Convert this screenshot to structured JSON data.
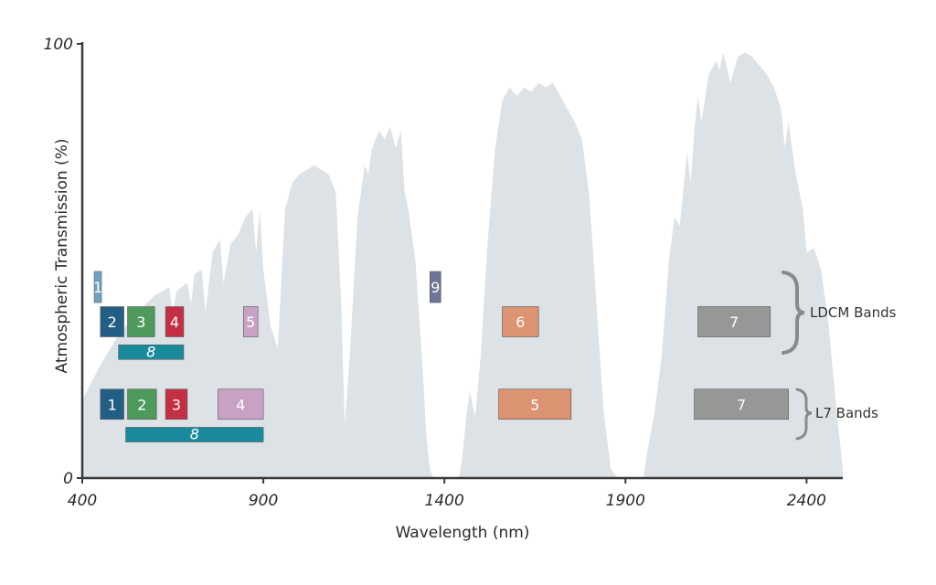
{
  "chart_data": {
    "type": "area",
    "title": "",
    "xlabel": "Wavelength (nm)",
    "ylabel": "Atmospheric Transmission (%)",
    "xlim": [
      400,
      2500
    ],
    "ylim": [
      0,
      100
    ],
    "x_ticks": [
      400,
      900,
      1400,
      1900,
      2400
    ],
    "y_ticks": [
      0,
      100
    ],
    "grid": false,
    "area_color": "#dde2e6",
    "series": [
      {
        "values": [
          [
            400,
            18
          ],
          [
            450,
            26
          ],
          [
            500,
            33
          ],
          [
            550,
            38
          ],
          [
            600,
            42
          ],
          [
            640,
            44
          ],
          [
            650,
            38
          ],
          [
            660,
            43
          ],
          [
            690,
            45
          ],
          [
            700,
            40
          ],
          [
            710,
            47
          ],
          [
            730,
            48
          ],
          [
            740,
            38
          ],
          [
            760,
            52
          ],
          [
            780,
            55
          ],
          [
            790,
            45
          ],
          [
            810,
            54
          ],
          [
            830,
            56
          ],
          [
            850,
            60
          ],
          [
            870,
            62
          ],
          [
            880,
            52
          ],
          [
            890,
            62
          ],
          [
            900,
            48
          ],
          [
            920,
            35
          ],
          [
            940,
            30
          ],
          [
            960,
            62
          ],
          [
            980,
            68
          ],
          [
            1000,
            70
          ],
          [
            1020,
            71
          ],
          [
            1040,
            72
          ],
          [
            1060,
            71
          ],
          [
            1080,
            70
          ],
          [
            1100,
            66
          ],
          [
            1115,
            40
          ],
          [
            1125,
            12
          ],
          [
            1140,
            30
          ],
          [
            1160,
            60
          ],
          [
            1180,
            72
          ],
          [
            1190,
            70
          ],
          [
            1200,
            76
          ],
          [
            1220,
            80
          ],
          [
            1235,
            78
          ],
          [
            1250,
            81
          ],
          [
            1265,
            76
          ],
          [
            1280,
            80
          ],
          [
            1290,
            66
          ],
          [
            1300,
            62
          ],
          [
            1320,
            50
          ],
          [
            1340,
            25
          ],
          [
            1350,
            10
          ],
          [
            1360,
            2
          ],
          [
            1370,
            0
          ],
          [
            1440,
            0
          ],
          [
            1450,
            5
          ],
          [
            1460,
            14
          ],
          [
            1470,
            20
          ],
          [
            1485,
            14
          ],
          [
            1500,
            28
          ],
          [
            1520,
            55
          ],
          [
            1540,
            76
          ],
          [
            1560,
            87
          ],
          [
            1580,
            90
          ],
          [
            1600,
            88
          ],
          [
            1620,
            90
          ],
          [
            1640,
            89
          ],
          [
            1660,
            91
          ],
          [
            1680,
            90
          ],
          [
            1700,
            91
          ],
          [
            1720,
            88
          ],
          [
            1740,
            85
          ],
          [
            1760,
            82
          ],
          [
            1780,
            78
          ],
          [
            1800,
            65
          ],
          [
            1820,
            40
          ],
          [
            1840,
            15
          ],
          [
            1860,
            2
          ],
          [
            1880,
            0
          ],
          [
            1950,
            0
          ],
          [
            1960,
            6
          ],
          [
            1980,
            15
          ],
          [
            2000,
            28
          ],
          [
            2020,
            50
          ],
          [
            2035,
            60
          ],
          [
            2050,
            58
          ],
          [
            2070,
            75
          ],
          [
            2080,
            68
          ],
          [
            2090,
            80
          ],
          [
            2100,
            88
          ],
          [
            2110,
            82
          ],
          [
            2130,
            93
          ],
          [
            2150,
            96
          ],
          [
            2160,
            94
          ],
          [
            2170,
            98
          ],
          [
            2190,
            91
          ],
          [
            2210,
            97
          ],
          [
            2230,
            98
          ],
          [
            2250,
            97
          ],
          [
            2270,
            95
          ],
          [
            2290,
            93
          ],
          [
            2310,
            90
          ],
          [
            2330,
            85
          ],
          [
            2340,
            76
          ],
          [
            2350,
            82
          ],
          [
            2370,
            70
          ],
          [
            2390,
            62
          ],
          [
            2400,
            52
          ],
          [
            2420,
            53
          ],
          [
            2440,
            48
          ],
          [
            2460,
            36
          ],
          [
            2480,
            18
          ],
          [
            2500,
            2
          ]
        ]
      }
    ],
    "ldcm_group_label": "LDCM Bands",
    "ldcm_bands": [
      {
        "label": "1",
        "start": 433,
        "end": 453,
        "level": 44,
        "color": "#6fa3c6"
      },
      {
        "label": "2",
        "start": 450,
        "end": 515,
        "level": 36,
        "color": "#235f84"
      },
      {
        "label": "3",
        "start": 525,
        "end": 600,
        "level": 36,
        "color": "#4d9a5c"
      },
      {
        "label": "4",
        "start": 630,
        "end": 680,
        "level": 36,
        "color": "#c33043"
      },
      {
        "label": "5",
        "start": 845,
        "end": 885,
        "level": 36,
        "color": "#c9a1c4"
      },
      {
        "label": "6",
        "start": 1560,
        "end": 1660,
        "level": 36,
        "color": "#dc9372"
      },
      {
        "label": "7",
        "start": 2100,
        "end": 2300,
        "level": 36,
        "color": "#959895"
      },
      {
        "label": "8",
        "start": 500,
        "end": 680,
        "level": 29,
        "color": "#198a9c"
      },
      {
        "label": "9",
        "start": 1360,
        "end": 1390,
        "level": 44,
        "color": "#6d7599"
      }
    ],
    "l7_group_label": "L7 Bands",
    "l7_bands": [
      {
        "label": "1",
        "start": 450,
        "end": 515,
        "level": 17,
        "color": "#235f84"
      },
      {
        "label": "2",
        "start": 525,
        "end": 605,
        "level": 17,
        "color": "#4d9a5c"
      },
      {
        "label": "3",
        "start": 630,
        "end": 690,
        "level": 17,
        "color": "#c33043"
      },
      {
        "label": "4",
        "start": 775,
        "end": 900,
        "level": 17,
        "color": "#c9a1c4"
      },
      {
        "label": "5",
        "start": 1550,
        "end": 1750,
        "level": 17,
        "color": "#dc9372"
      },
      {
        "label": "7",
        "start": 2090,
        "end": 2350,
        "level": 17,
        "color": "#959895"
      },
      {
        "label": "8",
        "start": 520,
        "end": 900,
        "level": 10,
        "color": "#198a9c"
      }
    ]
  }
}
